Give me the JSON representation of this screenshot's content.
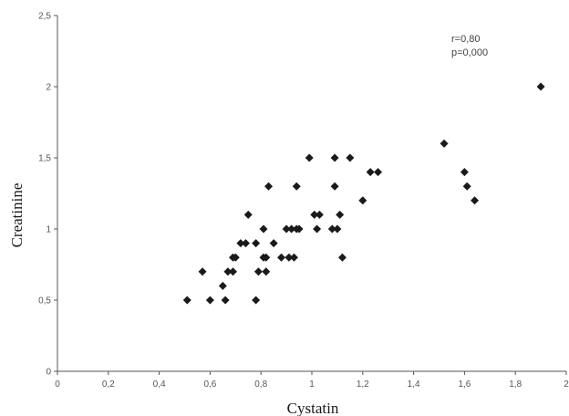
{
  "chart_data": {
    "type": "scatter",
    "title": "",
    "xlabel": "Cystatin",
    "ylabel": "Creatinine",
    "xlim": [
      0,
      2
    ],
    "ylim": [
      0,
      2.5
    ],
    "x_ticks": [
      "0",
      "0,2",
      "0,4",
      "0,6",
      "0,8",
      "1",
      "1,2",
      "1,4",
      "1,6",
      "1,8",
      "2"
    ],
    "y_ticks": [
      "0",
      "0,5",
      "1",
      "1,5",
      "2",
      "2,5"
    ],
    "grid": false,
    "legend": "none",
    "annotations": [
      "r=0,80",
      "p=0,000"
    ],
    "marker": "diamond",
    "marker_color": "#1a1a1a",
    "points": [
      [
        0.51,
        0.5
      ],
      [
        0.57,
        0.7
      ],
      [
        0.6,
        0.5
      ],
      [
        0.65,
        0.6
      ],
      [
        0.66,
        0.5
      ],
      [
        0.67,
        0.7
      ],
      [
        0.69,
        0.7
      ],
      [
        0.69,
        0.8
      ],
      [
        0.7,
        0.8
      ],
      [
        0.72,
        0.9
      ],
      [
        0.74,
        0.9
      ],
      [
        0.75,
        1.1
      ],
      [
        0.78,
        0.9
      ],
      [
        0.78,
        0.5
      ],
      [
        0.79,
        0.7
      ],
      [
        0.81,
        0.8
      ],
      [
        0.81,
        1.0
      ],
      [
        0.82,
        0.7
      ],
      [
        0.82,
        0.8
      ],
      [
        0.83,
        1.3
      ],
      [
        0.85,
        0.9
      ],
      [
        0.88,
        0.8
      ],
      [
        0.9,
        1.0
      ],
      [
        0.91,
        0.8
      ],
      [
        0.92,
        1.0
      ],
      [
        0.93,
        0.8
      ],
      [
        0.94,
        1.0
      ],
      [
        0.94,
        1.3
      ],
      [
        0.95,
        1.0
      ],
      [
        0.99,
        1.5
      ],
      [
        1.01,
        1.1
      ],
      [
        1.02,
        1.0
      ],
      [
        1.03,
        1.1
      ],
      [
        1.08,
        1.0
      ],
      [
        1.09,
        1.5
      ],
      [
        1.09,
        1.3
      ],
      [
        1.1,
        1.0
      ],
      [
        1.11,
        1.1
      ],
      [
        1.12,
        0.8
      ],
      [
        1.15,
        1.5
      ],
      [
        1.2,
        1.2
      ],
      [
        1.23,
        1.4
      ],
      [
        1.26,
        1.4
      ],
      [
        1.52,
        1.6
      ],
      [
        1.6,
        1.4
      ],
      [
        1.61,
        1.3
      ],
      [
        1.64,
        1.2
      ],
      [
        1.9,
        2.0
      ]
    ]
  }
}
